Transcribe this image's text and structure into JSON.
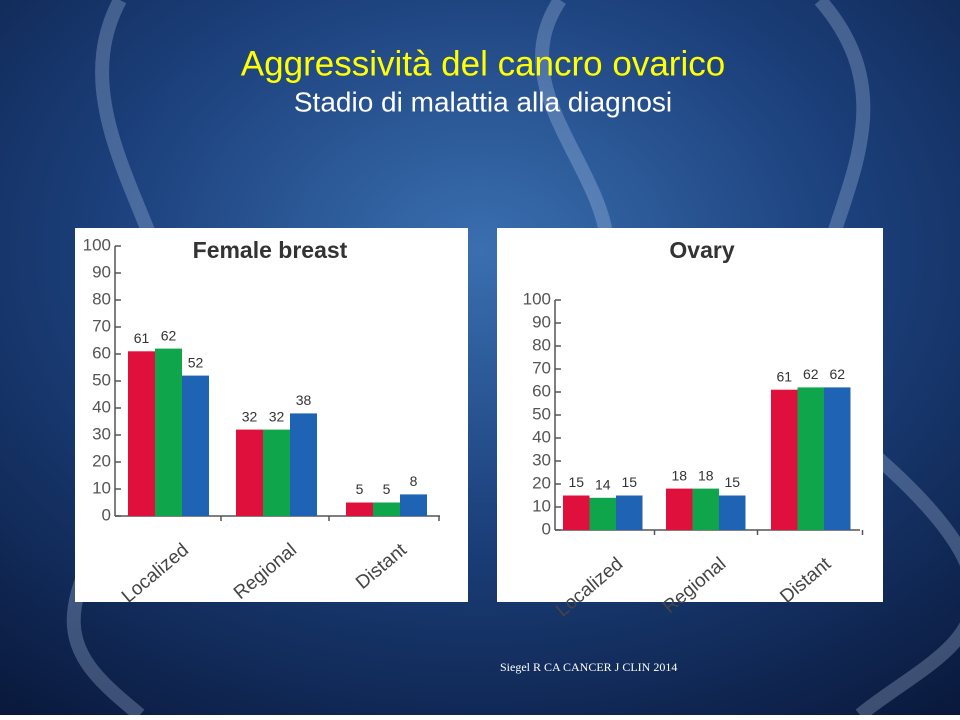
{
  "title": "Aggressività del cancro ovarico",
  "subtitle": "Stadio di malattia alla diagnosi",
  "source": "Siegel R CA CANCER J CLIN 2014",
  "chart_data": [
    {
      "type": "bar",
      "title": "Female breast",
      "categories": [
        "Localized",
        "Regional",
        "Distant"
      ],
      "series": [
        {
          "color": "#e0103c",
          "values": [
            61,
            32,
            5
          ]
        },
        {
          "color": "#0fa64b",
          "values": [
            62,
            32,
            5
          ]
        },
        {
          "color": "#1f63b4",
          "values": [
            52,
            38,
            8
          ]
        }
      ],
      "ylim": [
        0,
        100
      ],
      "yticks": [
        0,
        10,
        20,
        30,
        40,
        50,
        60,
        70,
        80,
        90,
        100
      ]
    },
    {
      "type": "bar",
      "title": "Ovary",
      "categories": [
        "Localized",
        "Regional",
        "Distant"
      ],
      "series": [
        {
          "color": "#e0103c",
          "values": [
            15,
            18,
            61
          ]
        },
        {
          "color": "#0fa64b",
          "values": [
            14,
            18,
            62
          ]
        },
        {
          "color": "#1f63b4",
          "values": [
            15,
            15,
            62
          ]
        }
      ],
      "ylim": [
        0,
        100
      ],
      "yticks": [
        0,
        10,
        20,
        30,
        40,
        50,
        60,
        70,
        80,
        90,
        100
      ]
    }
  ]
}
